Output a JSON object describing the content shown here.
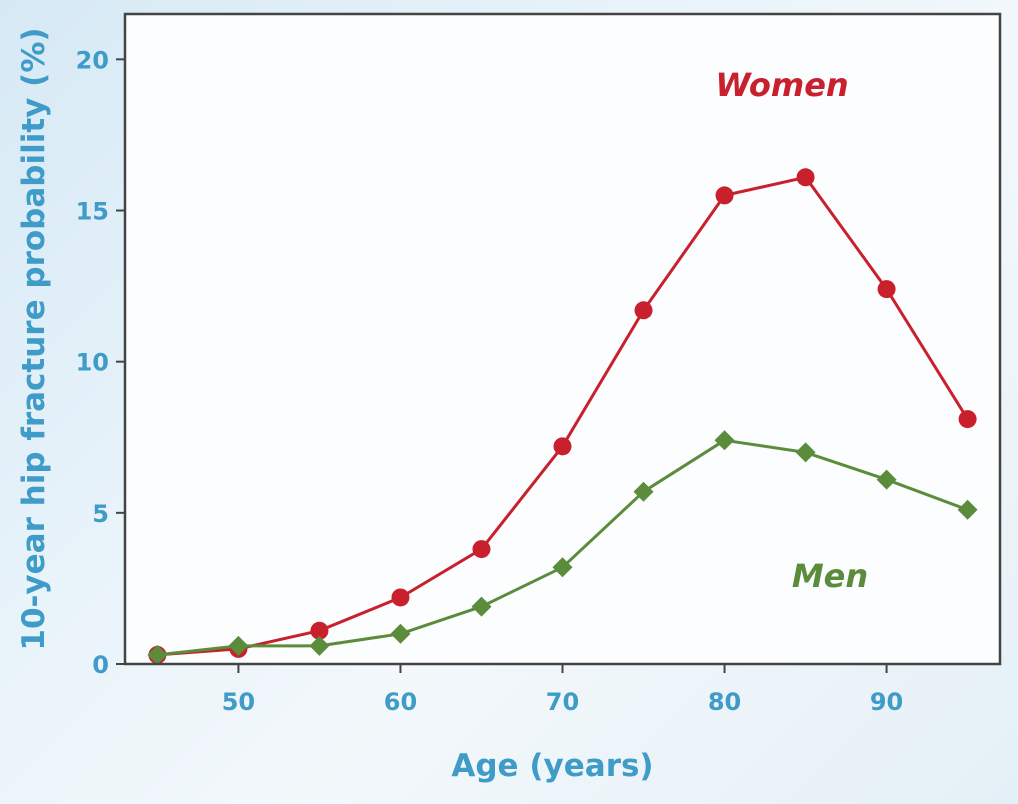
{
  "chart_data": {
    "type": "line",
    "title": "",
    "xlabel": "Age (years)",
    "ylabel": "10-year hip fracture probability (%)",
    "xlim": [
      43,
      97
    ],
    "ylim": [
      0,
      21.5
    ],
    "x_ticks": [
      50,
      60,
      70,
      80,
      90
    ],
    "y_ticks": [
      0,
      5,
      10,
      15,
      20
    ],
    "grid": false,
    "legend": "none; series are labeled directly in the plot",
    "x": [
      45,
      50,
      55,
      60,
      65,
      70,
      75,
      80,
      85,
      90,
      95
    ],
    "series": [
      {
        "name": "Women",
        "color": "#c8202c",
        "marker": "circle",
        "values": [
          0.3,
          0.5,
          1.1,
          2.2,
          3.8,
          7.2,
          11.7,
          15.5,
          16.1,
          12.4,
          8.1
        ]
      },
      {
        "name": "Men",
        "color": "#5b8c3c",
        "marker": "diamond",
        "values": [
          0.3,
          0.6,
          0.6,
          1.0,
          1.9,
          3.2,
          5.7,
          7.4,
          7.0,
          6.1,
          5.1
        ]
      }
    ]
  },
  "colors": {
    "axis_text": "#3f9bc8",
    "plot_background": "#fbfdfe",
    "frame": "#444444"
  }
}
